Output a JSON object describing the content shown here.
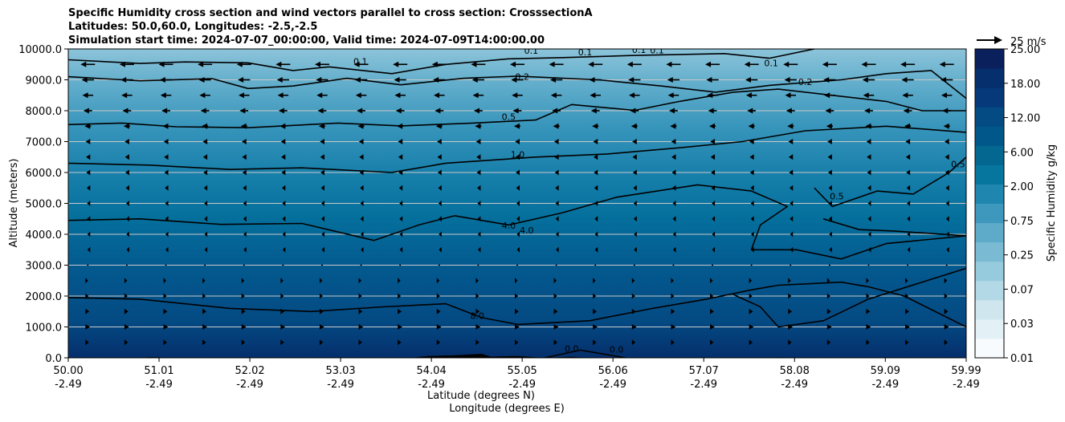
{
  "chart_data": {
    "type": "contour",
    "title_lines": [
      "Specific Humidity cross section and wind vectors parallel to cross section: CrosssectionA",
      "Latitudes: 50.0,60.0, Longitudes: -2.5,-2.5",
      "Simulation start time: 2024-07-07_00:00:00, Valid time: 2024-07-09T14:00:00.00"
    ],
    "ylabel": "Altitude (meters)",
    "xlabel_lat": "Latitude (degrees N)",
    "xlabel_lon": "Longitude (degrees E)",
    "ylim": [
      0,
      10000
    ],
    "yticks": [
      "0.0",
      "1000.0",
      "2000.0",
      "3000.0",
      "4000.0",
      "5000.0",
      "6000.0",
      "7000.0",
      "8000.0",
      "9000.0",
      "10000.0"
    ],
    "xlim": [
      50.0,
      59.99
    ],
    "xticks": [
      {
        "lat": "50.00",
        "lon": "-2.49"
      },
      {
        "lat": "51.01",
        "lon": "-2.49"
      },
      {
        "lat": "52.02",
        "lon": "-2.49"
      },
      {
        "lat": "53.03",
        "lon": "-2.49"
      },
      {
        "lat": "54.04",
        "lon": "-2.49"
      },
      {
        "lat": "55.05",
        "lon": "-2.49"
      },
      {
        "lat": "56.06",
        "lon": "-2.49"
      },
      {
        "lat": "57.07",
        "lon": "-2.49"
      },
      {
        "lat": "58.08",
        "lon": "-2.49"
      },
      {
        "lat": "59.09",
        "lon": "-2.49"
      },
      {
        "lat": "59.99",
        "lon": "-2.49"
      }
    ],
    "colorbar": {
      "label": "Specific Humidity g/kg",
      "ticks": [
        "0.01",
        "0.03",
        "0.07",
        "0.25",
        "0.75",
        "2.00",
        "6.00",
        "12.00",
        "18.00",
        "25.00"
      ],
      "colors": [
        "#f7fbfd",
        "#e3f0f5",
        "#cfe6ee",
        "#b4d9e6",
        "#96cadd",
        "#7bbad3",
        "#5eaac9",
        "#3e97bd",
        "#1f86b0",
        "#07769f",
        "#036790",
        "#02578a",
        "#044a83",
        "#05397a",
        "#062f6e",
        "#0a205c"
      ]
    },
    "wind_reference": {
      "label": "25 m/s",
      "speed": 25
    },
    "grid": "horizontal",
    "contour_labels": [
      {
        "text": "0.1",
        "lat": 53.25,
        "alt": 9600
      },
      {
        "text": "0.1",
        "lat": 55.15,
        "alt": 9950
      },
      {
        "text": "0.1",
        "lat": 55.75,
        "alt": 9900
      },
      {
        "text": "0.1",
        "lat": 56.35,
        "alt": 9970
      },
      {
        "text": "0.1",
        "lat": 56.55,
        "alt": 9960
      },
      {
        "text": "0.1",
        "lat": 57.82,
        "alt": 9540
      },
      {
        "text": "0.2",
        "lat": 55.05,
        "alt": 9100
      },
      {
        "text": "0.2",
        "lat": 58.2,
        "alt": 8930
      },
      {
        "text": "0.5",
        "lat": 54.9,
        "alt": 7810
      },
      {
        "text": "0.5",
        "lat": 58.55,
        "alt": 5230
      },
      {
        "text": "0.5",
        "lat": 59.9,
        "alt": 6270
      },
      {
        "text": "1.0",
        "lat": 55.0,
        "alt": 6580
      },
      {
        "text": "4.0",
        "lat": 54.9,
        "alt": 4280
      },
      {
        "text": "4.0",
        "lat": 55.1,
        "alt": 4130
      },
      {
        "text": "8.0",
        "lat": 54.55,
        "alt": 1360
      },
      {
        "text": "0.0",
        "lat": 55.6,
        "alt": 300
      },
      {
        "text": "0.0",
        "lat": 56.1,
        "alt": 270
      }
    ],
    "contour_levels": [
      0.1,
      0.2,
      0.5,
      1.0,
      4.0,
      8.0
    ],
    "contours": [
      {
        "level": 0.1,
        "points": [
          [
            50.0,
            9650
          ],
          [
            50.8,
            9530
          ],
          [
            51.3,
            9580
          ],
          [
            52.0,
            9550
          ],
          [
            52.5,
            9300
          ],
          [
            52.9,
            9420
          ],
          [
            53.6,
            9200
          ],
          [
            54.2,
            9500
          ],
          [
            54.9,
            9680
          ],
          [
            55.5,
            9720
          ],
          [
            56.3,
            9790
          ],
          [
            57.3,
            9850
          ],
          [
            57.8,
            9700
          ],
          [
            58.3,
            10000
          ]
        ]
      },
      {
        "level": 0.2,
        "points": [
          [
            50.0,
            9100
          ],
          [
            50.8,
            8970
          ],
          [
            51.6,
            9040
          ],
          [
            52.0,
            8720
          ],
          [
            52.5,
            8800
          ],
          [
            53.1,
            9050
          ],
          [
            53.7,
            8840
          ],
          [
            54.4,
            9050
          ],
          [
            55.0,
            9120
          ],
          [
            55.9,
            9000
          ],
          [
            56.6,
            8800
          ],
          [
            57.2,
            8600
          ],
          [
            57.8,
            8820
          ],
          [
            58.6,
            9000
          ],
          [
            59.1,
            9200
          ],
          [
            59.6,
            9300
          ],
          [
            59.99,
            8400
          ]
        ]
      },
      {
        "level": 0.5,
        "points": [
          [
            50.0,
            7550
          ],
          [
            50.6,
            7600
          ],
          [
            51.2,
            7480
          ],
          [
            52.0,
            7450
          ],
          [
            53.0,
            7600
          ],
          [
            53.7,
            7510
          ],
          [
            54.5,
            7600
          ],
          [
            55.2,
            7700
          ],
          [
            55.6,
            8200
          ],
          [
            56.3,
            8010
          ],
          [
            56.8,
            8300
          ],
          [
            57.4,
            8600
          ],
          [
            57.9,
            8700
          ],
          [
            58.5,
            8500
          ],
          [
            59.1,
            8300
          ],
          [
            59.5,
            8000
          ],
          [
            59.99,
            8000
          ]
        ]
      },
      {
        "level": 1.0,
        "points": [
          [
            50.0,
            6300
          ],
          [
            50.9,
            6240
          ],
          [
            51.8,
            6100
          ],
          [
            52.6,
            6150
          ],
          [
            53.6,
            6000
          ],
          [
            54.2,
            6300
          ],
          [
            55.2,
            6500
          ],
          [
            56.0,
            6600
          ],
          [
            56.8,
            6800
          ],
          [
            57.5,
            7000
          ],
          [
            58.2,
            7350
          ],
          [
            59.1,
            7500
          ],
          [
            59.99,
            7300
          ]
        ]
      },
      {
        "level": 0.5,
        "points": [
          [
            58.3,
            5500
          ],
          [
            58.5,
            4900
          ],
          [
            59.0,
            5400
          ],
          [
            59.4,
            5300
          ],
          [
            59.8,
            6000
          ],
          [
            59.99,
            6500
          ]
        ]
      },
      {
        "level": 4.0,
        "points": [
          [
            50.0,
            4450
          ],
          [
            50.8,
            4500
          ],
          [
            51.7,
            4320
          ],
          [
            52.6,
            4350
          ],
          [
            53.4,
            3800
          ],
          [
            53.9,
            4300
          ],
          [
            54.3,
            4600
          ],
          [
            54.9,
            4300
          ],
          [
            55.5,
            4700
          ],
          [
            56.1,
            5200
          ],
          [
            57.0,
            5600
          ],
          [
            57.6,
            5400
          ],
          [
            58.0,
            4900
          ],
          [
            57.7,
            4300
          ],
          [
            57.6,
            3500
          ],
          [
            58.1,
            3500
          ],
          [
            58.6,
            3200
          ],
          [
            59.1,
            3700
          ],
          [
            59.99,
            3950
          ]
        ]
      },
      {
        "level": 4.0,
        "points": [
          [
            58.4,
            4500
          ],
          [
            58.8,
            4150
          ],
          [
            59.2,
            4100
          ],
          [
            59.99,
            3950
          ]
        ]
      },
      {
        "level": 8.0,
        "points": [
          [
            50.0,
            1950
          ],
          [
            50.8,
            1900
          ],
          [
            51.8,
            1600
          ],
          [
            52.7,
            1500
          ],
          [
            53.5,
            1650
          ],
          [
            54.2,
            1750
          ],
          [
            54.6,
            1300
          ],
          [
            55.0,
            1080
          ],
          [
            55.8,
            1200
          ],
          [
            56.5,
            1600
          ],
          [
            57.1,
            1900
          ],
          [
            57.6,
            2200
          ],
          [
            57.9,
            2350
          ],
          [
            58.6,
            2450
          ],
          [
            58.9,
            2300
          ],
          [
            59.3,
            2000
          ],
          [
            59.99,
            1000
          ]
        ]
      },
      {
        "level": 8.0,
        "points": [
          [
            57.4,
            2050
          ],
          [
            57.7,
            1650
          ],
          [
            57.9,
            1000
          ],
          [
            58.4,
            1200
          ],
          [
            58.9,
            1900
          ],
          [
            59.99,
            2900
          ]
        ]
      },
      {
        "level": 0.0,
        "points": [
          [
            55.3,
            0
          ],
          [
            55.7,
            250
          ],
          [
            56.2,
            0
          ]
        ]
      }
    ],
    "terrain": [
      [
        50.8,
        0
      ],
      [
        50.9,
        25
      ],
      [
        51.1,
        10
      ],
      [
        51.5,
        0
      ],
      [
        53.8,
        0
      ],
      [
        54.0,
        60
      ],
      [
        54.3,
        80
      ],
      [
        54.6,
        130
      ],
      [
        54.7,
        40
      ],
      [
        55.0,
        60
      ],
      [
        55.3,
        0
      ],
      [
        55.6,
        30
      ],
      [
        55.8,
        0
      ],
      [
        57.8,
        0
      ],
      [
        57.9,
        20
      ],
      [
        58.1,
        10
      ],
      [
        58.3,
        0
      ]
    ],
    "wind_rows": [
      {
        "alt": 9500,
        "u": -20
      },
      {
        "alt": 9000,
        "u": -17
      },
      {
        "alt": 8500,
        "u": -15
      },
      {
        "alt": 8000,
        "u": -12
      },
      {
        "alt": 7500,
        "u": -9
      },
      {
        "alt": 7000,
        "u": -6
      },
      {
        "alt": 6500,
        "u": -5
      },
      {
        "alt": 6000,
        "u": -4
      },
      {
        "alt": 5500,
        "u": -3
      },
      {
        "alt": 5000,
        "u": -2
      },
      {
        "alt": 4500,
        "u": -2
      },
      {
        "alt": 4000,
        "u": -1
      },
      {
        "alt": 3500,
        "u": -1
      },
      {
        "alt": 3000,
        "u": 0
      },
      {
        "alt": 2500,
        "u": 1
      },
      {
        "alt": 2000,
        "u": 2
      },
      {
        "alt": 1500,
        "u": 4
      },
      {
        "alt": 1000,
        "u": 6
      },
      {
        "alt": 500,
        "u": 3
      }
    ]
  }
}
